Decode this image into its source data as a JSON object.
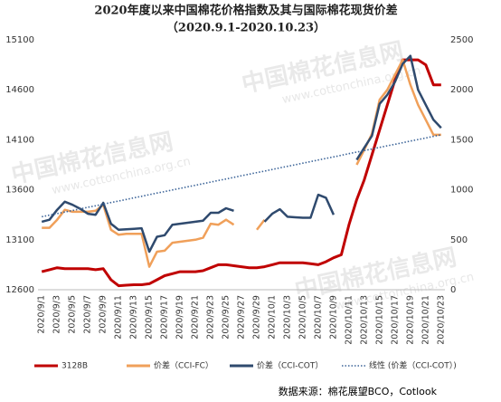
{
  "chart_data": {
    "type": "line",
    "title": "2020年度以来中国棉花价格指数及其与国际棉花现货价差",
    "subtitle": "（2020.9.1-2020.10.23）",
    "watermark": "中国棉花信息网",
    "watermark_url": "www.cottonchina.org.cn",
    "source": "数据来源：棉花展望BCO，Cotlook",
    "categories": [
      "2020/9/1",
      null,
      "2020/9/3",
      null,
      "2020/9/5",
      null,
      "2020/9/7",
      null,
      "2020/9/9",
      null,
      "2020/9/11",
      null,
      "2020/9/13",
      null,
      "2020/9/15",
      null,
      "2020/9/17",
      null,
      "2020/9/19",
      null,
      "2020/9/21",
      null,
      "2020/9/23",
      null,
      "2020/9/25",
      null,
      "2020/9/27",
      null,
      "2020/9/29",
      null,
      "2020/10/1",
      null,
      "2020/10/3",
      null,
      "2020/10/5",
      null,
      "2020/10/7",
      null,
      "2020/10/9",
      null,
      "2020/10/11",
      null,
      "2020/10/13",
      null,
      "2020/10/15",
      null,
      "2020/10/17",
      null,
      "2020/10/19",
      null,
      "2020/10/21",
      null,
      "2020/10/23"
    ],
    "ylim": [
      12600,
      15100
    ],
    "yticks": [
      12600,
      13100,
      13600,
      14100,
      14600,
      15100
    ],
    "y2lim": [
      0,
      2500
    ],
    "y2ticks": [
      0,
      500,
      1000,
      1500,
      2000,
      2500
    ],
    "legend": "bottom",
    "series": [
      {
        "name": "3128B",
        "color": "#c00000",
        "values": [
          12780,
          12800,
          12820,
          12810,
          12810,
          12810,
          12810,
          12800,
          12810,
          12700,
          12640,
          12645,
          12650,
          12650,
          12660,
          12700,
          12740,
          12760,
          12780,
          12780,
          12780,
          12790,
          12820,
          12850,
          12850,
          12840,
          12830,
          12820,
          12820,
          12830,
          12850,
          12870,
          12870,
          12870,
          12870,
          12860,
          12850,
          12880,
          12920,
          12950,
          13250,
          13500,
          13700,
          13950,
          14200,
          14450,
          14700,
          14900,
          14900,
          14900,
          14850,
          14650,
          14650
        ]
      },
      {
        "name": "价差（CCI-FC）",
        "color": "#f0a05a",
        "axis": "y2",
        "values": [
          620,
          620,
          700,
          800,
          780,
          780,
          780,
          790,
          850,
          600,
          550,
          560,
          560,
          560,
          230,
          380,
          390,
          470,
          480,
          490,
          500,
          520,
          660,
          650,
          700,
          650,
          null,
          null,
          600,
          700,
          null,
          null,
          null,
          null,
          null,
          null,
          null,
          null,
          null,
          null,
          null,
          1250,
          1400,
          1560,
          1900,
          2000,
          2150,
          2300,
          2050,
          1850,
          1700,
          1550,
          1550
        ]
      },
      {
        "name": "价差（CCI-COT）",
        "color": "#2f4a6e",
        "axis": "y2",
        "values": [
          680,
          700,
          800,
          880,
          850,
          810,
          760,
          750,
          870,
          660,
          600,
          605,
          610,
          615,
          380,
          530,
          545,
          650,
          660,
          670,
          680,
          690,
          770,
          770,
          815,
          790,
          null,
          null,
          null,
          680,
          760,
          805,
          730,
          725,
          720,
          720,
          950,
          920,
          750,
          null,
          null,
          1300,
          1420,
          1540,
          1860,
          1950,
          2080,
          2260,
          2340,
          2000,
          1850,
          1700,
          1620
        ]
      },
      {
        "name": "线性 (价差（CCI-COT）)",
        "color": "#3d6599",
        "axis": "y2",
        "dash": true,
        "values": [
          730,
          746,
          762,
          777,
          793,
          809,
          825,
          840,
          856,
          872,
          888,
          903,
          919,
          935,
          951,
          967,
          982,
          998,
          1014,
          1030,
          1045,
          1061,
          1077,
          1093,
          1108,
          1124,
          1140,
          1156,
          1172,
          1187,
          1203,
          1219,
          1235,
          1250,
          1266,
          1282,
          1298,
          1313,
          1329,
          1345,
          1361,
          1377,
          1392,
          1408,
          1424,
          1440,
          1455,
          1471,
          1487,
          1503,
          1518,
          1534,
          1550
        ]
      }
    ]
  }
}
